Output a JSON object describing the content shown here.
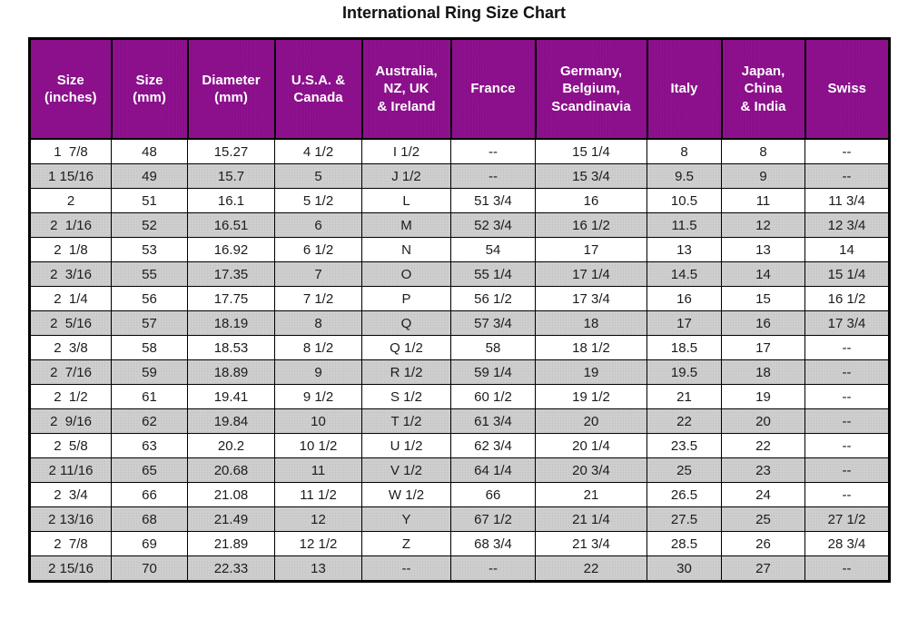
{
  "page": {
    "title": "International Ring Size Chart"
  },
  "colors": {
    "header_bg": "#8B0E8B",
    "header_text": "#FFFFFF",
    "row_bg": "#FFFFFF",
    "row_alt_bg": "#C9C9C9",
    "border": "#000000",
    "title_text": "#111111"
  },
  "chart_data": {
    "type": "table",
    "title": "International Ring Size Chart",
    "columns": [
      "Size\n(inches)",
      "Size\n(mm)",
      "Diameter\n(mm)",
      "U.S.A. &\nCanada",
      "Australia,\nNZ, UK\n& Ireland",
      "France",
      "Germany,\nBelgium,\nScandinavia",
      "Italy",
      "Japan,\nChina\n& India",
      "Swiss"
    ],
    "rows": [
      [
        "1  7/8",
        "48",
        "15.27",
        "4 1/2",
        "I 1/2",
        "--",
        "15 1/4",
        "8",
        "8",
        "--"
      ],
      [
        "1 15/16",
        "49",
        "15.7",
        "5",
        "J 1/2",
        "--",
        "15 3/4",
        "9.5",
        "9",
        "--"
      ],
      [
        "2",
        "51",
        "16.1",
        "5 1/2",
        "L",
        "51 3/4",
        "16",
        "10.5",
        "11",
        "11 3/4"
      ],
      [
        "2  1/16",
        "52",
        "16.51",
        "6",
        "M",
        "52 3/4",
        "16 1/2",
        "11.5",
        "12",
        "12 3/4"
      ],
      [
        "2  1/8",
        "53",
        "16.92",
        "6 1/2",
        "N",
        "54",
        "17",
        "13",
        "13",
        "14"
      ],
      [
        "2  3/16",
        "55",
        "17.35",
        "7",
        "O",
        "55 1/4",
        "17 1/4",
        "14.5",
        "14",
        "15 1/4"
      ],
      [
        "2  1/4",
        "56",
        "17.75",
        "7 1/2",
        "P",
        "56 1/2",
        "17 3/4",
        "16",
        "15",
        "16 1/2"
      ],
      [
        "2  5/16",
        "57",
        "18.19",
        "8",
        "Q",
        "57 3/4",
        "18",
        "17",
        "16",
        "17 3/4"
      ],
      [
        "2  3/8",
        "58",
        "18.53",
        "8 1/2",
        "Q 1/2",
        "58",
        "18 1/2",
        "18.5",
        "17",
        "--"
      ],
      [
        "2  7/16",
        "59",
        "18.89",
        "9",
        "R 1/2",
        "59 1/4",
        "19",
        "19.5",
        "18",
        "--"
      ],
      [
        "2  1/2",
        "61",
        "19.41",
        "9 1/2",
        "S 1/2",
        "60 1/2",
        "19 1/2",
        "21",
        "19",
        "--"
      ],
      [
        "2  9/16",
        "62",
        "19.84",
        "10",
        "T 1/2",
        "61 3/4",
        "20",
        "22",
        "20",
        "--"
      ],
      [
        "2  5/8",
        "63",
        "20.2",
        "10 1/2",
        "U 1/2",
        "62 3/4",
        "20 1/4",
        "23.5",
        "22",
        "--"
      ],
      [
        "2 11/16",
        "65",
        "20.68",
        "11",
        "V 1/2",
        "64 1/4",
        "20 3/4",
        "25",
        "23",
        "--"
      ],
      [
        "2  3/4",
        "66",
        "21.08",
        "11 1/2",
        "W 1/2",
        "66",
        "21",
        "26.5",
        "24",
        "--"
      ],
      [
        "2 13/16",
        "68",
        "21.49",
        "12",
        "Y",
        "67 1/2",
        "21 1/4",
        "27.5",
        "25",
        "27 1/2"
      ],
      [
        "2  7/8",
        "69",
        "21.89",
        "12 1/2",
        "Z",
        "68 3/4",
        "21 3/4",
        "28.5",
        "26",
        "28 3/4"
      ],
      [
        "2 15/16",
        "70",
        "22.33",
        "13",
        "--",
        "--",
        "22",
        "30",
        "27",
        "--"
      ]
    ]
  }
}
